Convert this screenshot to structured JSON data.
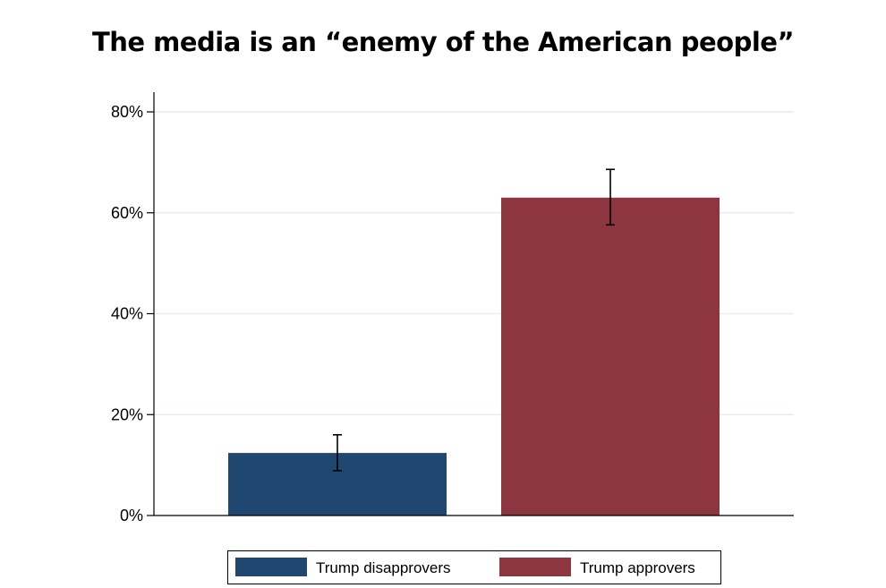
{
  "chart_data": {
    "type": "bar",
    "title": "The media is an “enemy of the American people”",
    "xlabel": "",
    "ylabel": "",
    "categories": [
      "Trump disapprovers",
      "Trump approvers"
    ],
    "values": [
      12.4,
      63.0
    ],
    "error_bars": [
      {
        "low": 8.9,
        "high": 16.0
      },
      {
        "low": 57.6,
        "high": 68.6
      }
    ],
    "colors": [
      "#1f4770",
      "#8e363f"
    ],
    "ylim": [
      0,
      80
    ],
    "yticks": [
      0,
      20,
      40,
      60,
      80
    ],
    "ytick_labels": [
      "0%",
      "20%",
      "40%",
      "60%",
      "80%"
    ],
    "grid": true,
    "grid_color": "#e6ecef",
    "legend_placement": "bottom-center"
  }
}
